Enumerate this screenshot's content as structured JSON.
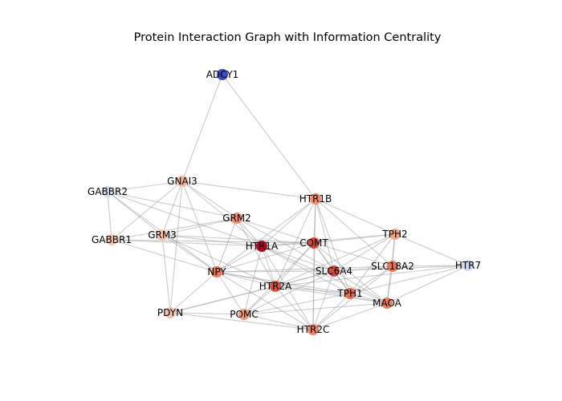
{
  "chart": {
    "title": "Protein Interaction Graph with Information Centrality",
    "nodes": [
      {
        "id": "ADCY1",
        "color": "#3b4cc0"
      },
      {
        "id": "GNAI3",
        "color": "#f5b89b"
      },
      {
        "id": "GABBR2",
        "color": "#d2dbe8"
      },
      {
        "id": "GABBR1",
        "color": "#f4c5ad"
      },
      {
        "id": "GRM3",
        "color": "#f7c4a8"
      },
      {
        "id": "GRM2",
        "color": "#ef8c6c"
      },
      {
        "id": "HTR1B",
        "color": "#f08d6e"
      },
      {
        "id": "HTR1A",
        "color": "#b40426"
      },
      {
        "id": "COMT",
        "color": "#d4483b"
      },
      {
        "id": "TPH2",
        "color": "#f4a584"
      },
      {
        "id": "SLC18A2",
        "color": "#e7745b"
      },
      {
        "id": "HTR7",
        "color": "#ccd9ea"
      },
      {
        "id": "NPY",
        "color": "#e8765c"
      },
      {
        "id": "SLC6A4",
        "color": "#d24b40"
      },
      {
        "id": "HTR2A",
        "color": "#d65244"
      },
      {
        "id": "TPH1",
        "color": "#e36c55"
      },
      {
        "id": "MAOA",
        "color": "#ea7e62"
      },
      {
        "id": "PDYN",
        "color": "#f6c4aa"
      },
      {
        "id": "POMC",
        "color": "#f1997a"
      },
      {
        "id": "HTR2C",
        "color": "#ec8467"
      }
    ],
    "edges": [
      [
        "ADCY1",
        "GNAI3"
      ],
      [
        "ADCY1",
        "HTR1B"
      ],
      [
        "GNAI3",
        "GABBR2"
      ],
      [
        "GNAI3",
        "GABBR1"
      ],
      [
        "GNAI3",
        "GRM3"
      ],
      [
        "GNAI3",
        "GRM2"
      ],
      [
        "GNAI3",
        "HTR1A"
      ],
      [
        "GNAI3",
        "HTR1B"
      ],
      [
        "GNAI3",
        "NPY"
      ],
      [
        "GNAI3",
        "PDYN"
      ],
      [
        "GABBR2",
        "GABBR1"
      ],
      [
        "GABBR2",
        "GRM3"
      ],
      [
        "GABBR2",
        "GRM2"
      ],
      [
        "GABBR2",
        "HTR1A"
      ],
      [
        "GABBR2",
        "NPY"
      ],
      [
        "GABBR1",
        "GRM2"
      ],
      [
        "GABBR1",
        "HTR1A"
      ],
      [
        "GABBR1",
        "NPY"
      ],
      [
        "GABBR1",
        "COMT"
      ],
      [
        "GRM3",
        "GRM2"
      ],
      [
        "GRM3",
        "HTR1A"
      ],
      [
        "GRM3",
        "COMT"
      ],
      [
        "GRM3",
        "NPY"
      ],
      [
        "GRM3",
        "PDYN"
      ],
      [
        "GRM3",
        "HTR2A"
      ],
      [
        "GRM2",
        "HTR1A"
      ],
      [
        "GRM2",
        "COMT"
      ],
      [
        "GRM2",
        "SLC6A4"
      ],
      [
        "GRM2",
        "HTR2A"
      ],
      [
        "GRM2",
        "NPY"
      ],
      [
        "HTR1B",
        "HTR1A"
      ],
      [
        "HTR1B",
        "COMT"
      ],
      [
        "HTR1B",
        "TPH2"
      ],
      [
        "HTR1B",
        "SLC6A4"
      ],
      [
        "HTR1B",
        "HTR2A"
      ],
      [
        "HTR1B",
        "SLC18A2"
      ],
      [
        "HTR1B",
        "HTR2C"
      ],
      [
        "HTR1B",
        "TPH1"
      ],
      [
        "HTR1B",
        "NPY"
      ],
      [
        "HTR1A",
        "COMT"
      ],
      [
        "HTR1A",
        "SLC6A4"
      ],
      [
        "HTR1A",
        "HTR2A"
      ],
      [
        "HTR1A",
        "TPH1"
      ],
      [
        "HTR1A",
        "MAOA"
      ],
      [
        "HTR1A",
        "NPY"
      ],
      [
        "HTR1A",
        "HTR2C"
      ],
      [
        "HTR1A",
        "TPH2"
      ],
      [
        "HTR1A",
        "POMC"
      ],
      [
        "COMT",
        "TPH2"
      ],
      [
        "COMT",
        "SLC6A4"
      ],
      [
        "COMT",
        "SLC18A2"
      ],
      [
        "COMT",
        "HTR2A"
      ],
      [
        "COMT",
        "MAOA"
      ],
      [
        "COMT",
        "TPH1"
      ],
      [
        "COMT",
        "NPY"
      ],
      [
        "COMT",
        "HTR2C"
      ],
      [
        "COMT",
        "POMC"
      ],
      [
        "TPH2",
        "SLC18A2"
      ],
      [
        "TPH2",
        "SLC6A4"
      ],
      [
        "TPH2",
        "HTR7"
      ],
      [
        "TPH2",
        "TPH1"
      ],
      [
        "TPH2",
        "MAOA"
      ],
      [
        "TPH2",
        "HTR2A"
      ],
      [
        "SLC18A2",
        "SLC6A4"
      ],
      [
        "SLC18A2",
        "HTR7"
      ],
      [
        "SLC18A2",
        "MAOA"
      ],
      [
        "SLC18A2",
        "TPH1"
      ],
      [
        "SLC18A2",
        "NPY"
      ],
      [
        "SLC18A2",
        "HTR2C"
      ],
      [
        "HTR7",
        "SLC6A4"
      ],
      [
        "HTR7",
        "MAOA"
      ],
      [
        "HTR7",
        "TPH1"
      ],
      [
        "HTR7",
        "HTR2A"
      ],
      [
        "NPY",
        "SLC6A4"
      ],
      [
        "NPY",
        "HTR2A"
      ],
      [
        "NPY",
        "POMC"
      ],
      [
        "NPY",
        "PDYN"
      ],
      [
        "NPY",
        "HTR2C"
      ],
      [
        "NPY",
        "TPH1"
      ],
      [
        "NPY",
        "MAOA"
      ],
      [
        "SLC6A4",
        "HTR2A"
      ],
      [
        "SLC6A4",
        "TPH1"
      ],
      [
        "SLC6A4",
        "MAOA"
      ],
      [
        "SLC6A4",
        "HTR2C"
      ],
      [
        "SLC6A4",
        "POMC"
      ],
      [
        "SLC6A4",
        "PDYN"
      ],
      [
        "HTR2A",
        "TPH1"
      ],
      [
        "HTR2A",
        "POMC"
      ],
      [
        "HTR2A",
        "HTR2C"
      ],
      [
        "HTR2A",
        "PDYN"
      ],
      [
        "HTR2A",
        "MAOA"
      ],
      [
        "TPH1",
        "MAOA"
      ],
      [
        "TPH1",
        "HTR2C"
      ],
      [
        "TPH1",
        "POMC"
      ],
      [
        "MAOA",
        "HTR2C"
      ],
      [
        "MAOA",
        "POMC"
      ],
      [
        "PDYN",
        "POMC"
      ],
      [
        "PDYN",
        "HTR2C"
      ],
      [
        "POMC",
        "HTR2C"
      ]
    ]
  }
}
